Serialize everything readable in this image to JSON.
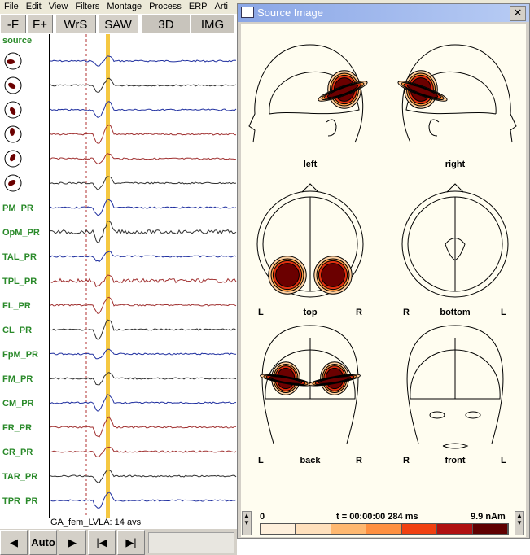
{
  "menu": [
    "File",
    "Edit",
    "View",
    "Filters",
    "Montage",
    "Process",
    "ERP",
    "Arti"
  ],
  "toolbar": [
    "-F",
    "F+",
    "WrS",
    "SAW",
    "3D",
    "IMG"
  ],
  "source_label": "source",
  "channels": [
    "PM_PR",
    "OpM_PR",
    "TAL_PR",
    "TPL_PR",
    "FL_PR",
    "CL_PR",
    "FpM_PR",
    "FM_PR",
    "CM_PR",
    "FR_PR",
    "CR_PR",
    "TAR_PR",
    "TPR_PR"
  ],
  "status": "GA_fem_LVLA: 14 avs",
  "bottom_toolbar": {
    "auto": "Auto"
  },
  "window": {
    "title": "Source Image",
    "views": [
      {
        "label": "left"
      },
      {
        "label": "right"
      },
      {
        "label": "top",
        "left": "L",
        "right": "R"
      },
      {
        "label": "bottom",
        "left": "R",
        "right": "L"
      },
      {
        "label": "back",
        "left": "L",
        "right": "R"
      },
      {
        "label": "front",
        "left": "R",
        "right": "L"
      }
    ],
    "scale": {
      "min": "0",
      "time": "t = 00:00:00  284 ms",
      "max": "9.9 nAm"
    }
  }
}
